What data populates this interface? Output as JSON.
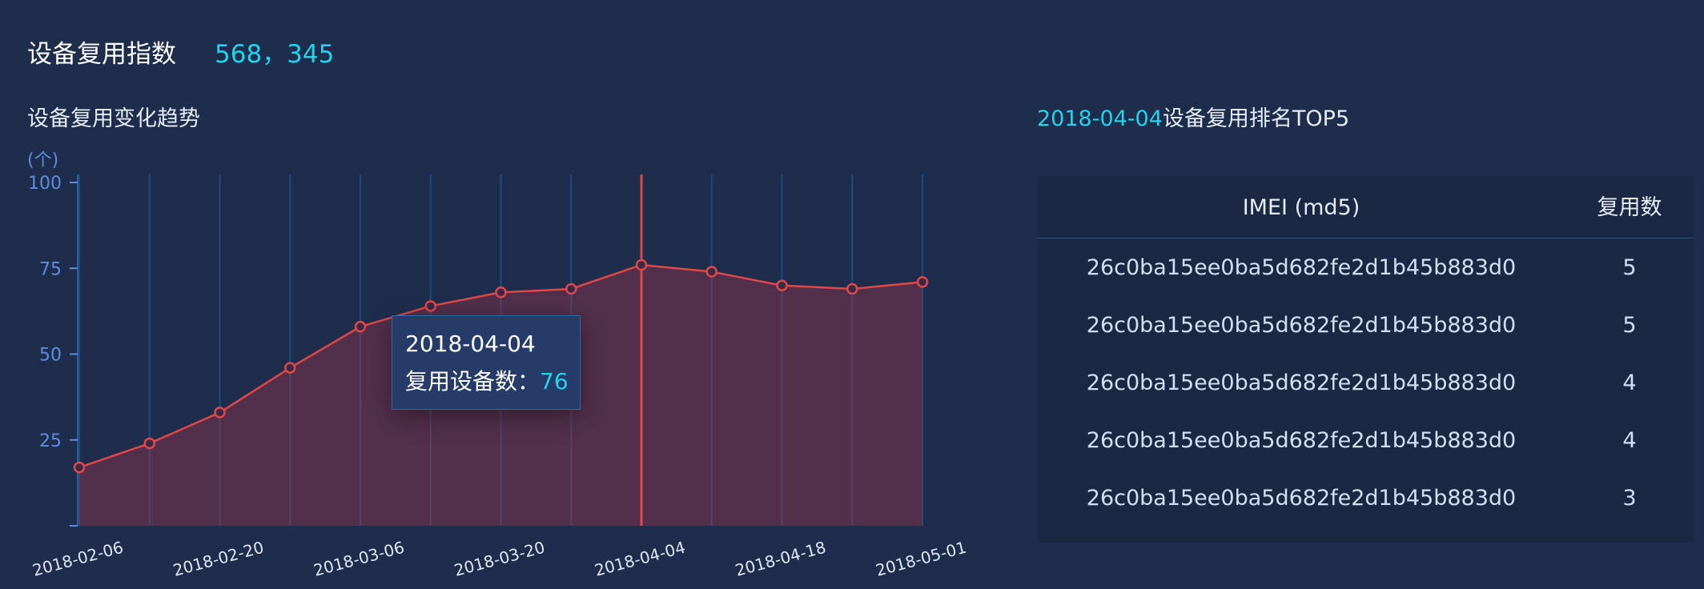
{
  "header": {
    "title": "设备复用指数",
    "value": "568，345"
  },
  "chart_data": {
    "type": "line",
    "title": "设备复用变化趋势",
    "unit": "(个)",
    "categories": [
      "2018-02-06",
      null,
      "2018-02-20",
      null,
      "2018-03-06",
      null,
      "2018-03-20",
      null,
      "2018-04-04",
      null,
      "2018-04-18",
      null,
      "2018-05-01"
    ],
    "values": [
      17,
      24,
      33,
      46,
      58,
      64,
      68,
      69,
      76,
      74,
      70,
      69,
      71
    ],
    "color": "#e04848",
    "ylim": [
      0,
      100
    ],
    "yticks": [
      25,
      50,
      75,
      100
    ],
    "highlight": 8,
    "tooltip_label": "复用设备数："
  },
  "ranking": {
    "date": "2018-04-04",
    "title": "设备复用排名TOP5",
    "columns": [
      "IMEI (md5)",
      "复用数"
    ],
    "rows": [
      [
        "26c0ba15ee0ba5d682fe2d1b45b883d0",
        5
      ],
      [
        "26c0ba15ee0ba5d682fe2d1b45b883d0",
        5
      ],
      [
        "26c0ba15ee0ba5d682fe2d1b45b883d0",
        4
      ],
      [
        "26c0ba15ee0ba5d682fe2d1b45b883d0",
        4
      ],
      [
        "26c0ba15ee0ba5d682fe2d1b45b883d0",
        3
      ]
    ]
  }
}
